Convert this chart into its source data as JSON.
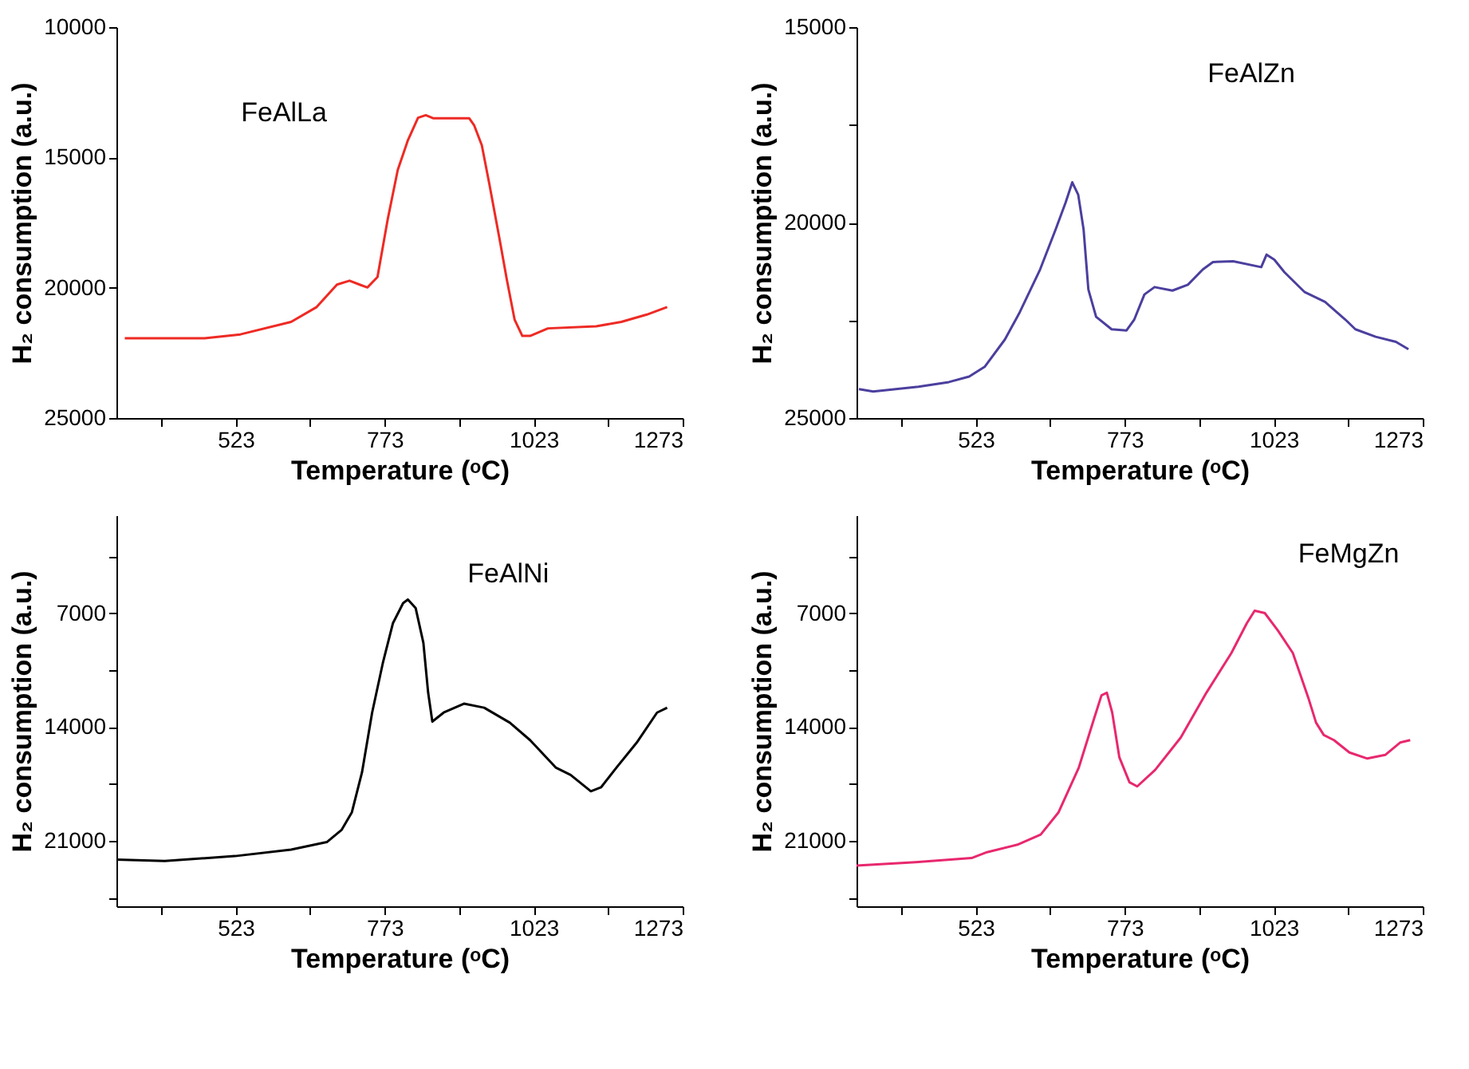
{
  "chart_data": [
    {
      "type": "line",
      "xlabel": "Temperature (ᵒC)",
      "ylabel": "H₂ consumption (a.u.)",
      "xlim": [
        323,
        1273
      ],
      "ylim": [
        25000,
        10000
      ],
      "marker": "none",
      "line_style": "solid",
      "xticks": [
        {
          "value": 398,
          "label": null
        },
        523,
        {
          "value": 648,
          "label": null
        },
        773,
        {
          "value": 898,
          "label": null
        },
        1023,
        {
          "value": 1148,
          "label": null
        },
        1273
      ],
      "yticks": [
        10000,
        15000,
        20000,
        25000
      ],
      "series": [
        {
          "name": "FeAlLa",
          "color": "#ee2a24",
          "x": [
            337,
            471,
            531,
            616,
            659,
            693,
            714,
            731,
            744,
            761,
            778,
            795,
            812,
            829,
            842,
            855,
            915,
            923,
            936,
            949,
            966,
            978,
            991,
            1004,
            1017,
            1047,
            1128,
            1170,
            1213,
            1247
          ],
          "values": [
            21940,
            21940,
            21790,
            21310,
            20740,
            19880,
            19730,
            19880,
            19990,
            19590,
            17390,
            15480,
            14340,
            13480,
            13380,
            13500,
            13500,
            13760,
            14530,
            16060,
            18160,
            19690,
            21220,
            21850,
            21850,
            21560,
            21480,
            21310,
            21030,
            20740
          ]
        }
      ]
    },
    {
      "type": "line",
      "ylabel": "H₂ consumption (a.u.)",
      "xlabel": "Temperature (ᵒC)",
      "xlim": [
        323,
        1273
      ],
      "ylim": [
        25000,
        15000
      ],
      "marker": "none",
      "line_style": "solid",
      "xticks": [
        {
          "value": 398,
          "label": null
        },
        523,
        {
          "value": 648,
          "label": null
        },
        773,
        {
          "value": 898,
          "label": null
        },
        1023,
        {
          "value": 1148,
          "label": null
        },
        1273
      ],
      "yticks": [
        15000,
        {
          "value": 17500,
          "label": null
        },
        20000,
        {
          "value": 22500,
          "label": null
        },
        25000
      ],
      "series": [
        {
          "name": "FeAlZn",
          "color": "#4b3f9e",
          "x": [
            327,
            351,
            427,
            478,
            512,
            538,
            572,
            597,
            631,
            657,
            674,
            685,
            695,
            704,
            712,
            725,
            751,
            776,
            789,
            806,
            823,
            853,
            879,
            904,
            921,
            955,
            1002,
            1011,
            1024,
            1041,
            1075,
            1109,
            1143,
            1160,
            1194,
            1228,
            1249
          ],
          "values": [
            24260,
            24320,
            24200,
            24080,
            23940,
            23690,
            22990,
            22290,
            21200,
            20180,
            19480,
            18970,
            19290,
            20180,
            21710,
            22410,
            22730,
            22760,
            22480,
            21840,
            21650,
            21740,
            21590,
            21200,
            21010,
            20990,
            21140,
            20820,
            20950,
            21270,
            21780,
            22030,
            22480,
            22730,
            22920,
            23050,
            23240
          ]
        }
      ]
    },
    {
      "type": "line",
      "xlabel": "Temperature (ᵒC)",
      "ylabel": "H₂ consumption (a.u.)",
      "xlim": [
        323,
        1273
      ],
      "ylim": [
        25000,
        1000
      ],
      "marker": "none",
      "line_style": "solid",
      "xticks": [
        {
          "value": 398,
          "label": null
        },
        523,
        {
          "value": 648,
          "label": null
        },
        773,
        {
          "value": 898,
          "label": null
        },
        1023,
        {
          "value": 1148,
          "label": null
        },
        1273
      ],
      "yticks": [
        {
          "value": 3500,
          "label": null
        },
        7000,
        {
          "value": 10500,
          "label": null
        },
        14000,
        {
          "value": 17500,
          "label": null
        },
        21000,
        {
          "value": 24500,
          "label": null
        }
      ],
      "series": [
        {
          "name": "FeAlNi",
          "color": "#000000",
          "x": [
            323,
            404,
            522,
            616,
            676,
            701,
            718,
            735,
            752,
            770,
            787,
            804,
            812,
            825,
            838,
            846,
            853,
            872,
            906,
            940,
            983,
            1017,
            1060,
            1085,
            1119,
            1136,
            1162,
            1196,
            1230,
            1247
          ],
          "values": [
            22130,
            22220,
            21920,
            21520,
            21060,
            20300,
            19230,
            16780,
            13110,
            10060,
            7610,
            6390,
            6170,
            6690,
            8830,
            11890,
            13660,
            13110,
            12560,
            12810,
            13730,
            14800,
            16480,
            16940,
            17940,
            17700,
            16480,
            14950,
            13110,
            12810
          ]
        }
      ]
    },
    {
      "type": "line",
      "xlabel": "Temperature (ᵒC)",
      "ylabel": "H₂ consumption (a.u.)",
      "xlim": [
        323,
        1273
      ],
      "ylim": [
        25000,
        1000
      ],
      "marker": "none",
      "line_style": "solid",
      "xticks": [
        {
          "value": 398,
          "label": null
        },
        523,
        {
          "value": 648,
          "label": null
        },
        773,
        {
          "value": 898,
          "label": null
        },
        1023,
        {
          "value": 1148,
          "label": null
        },
        1273
      ],
      "yticks": [
        {
          "value": 3500,
          "label": null
        },
        7000,
        {
          "value": 10500,
          "label": null
        },
        14000,
        {
          "value": 17500,
          "label": null
        },
        21000,
        {
          "value": 24500,
          "label": null
        }
      ],
      "series": [
        {
          "name": "FeMgZn",
          "color": "#e8286e",
          "x": [
            323,
            422,
            516,
            542,
            593,
            632,
            662,
            696,
            722,
            734,
            743,
            752,
            764,
            781,
            794,
            824,
            867,
            910,
            952,
            978,
            991,
            1008,
            1030,
            1055,
            1068,
            1081,
            1094,
            1107,
            1124,
            1150,
            1180,
            1210,
            1235,
            1252
          ],
          "values": [
            22500,
            22290,
            22040,
            21680,
            21220,
            20600,
            19230,
            16480,
            13430,
            12050,
            11890,
            13110,
            15860,
            17390,
            17640,
            16630,
            14640,
            11890,
            9450,
            7610,
            6850,
            7000,
            8070,
            9450,
            10820,
            12200,
            13730,
            14490,
            14800,
            15560,
            15930,
            15710,
            14950,
            14800
          ]
        }
      ]
    }
  ]
}
